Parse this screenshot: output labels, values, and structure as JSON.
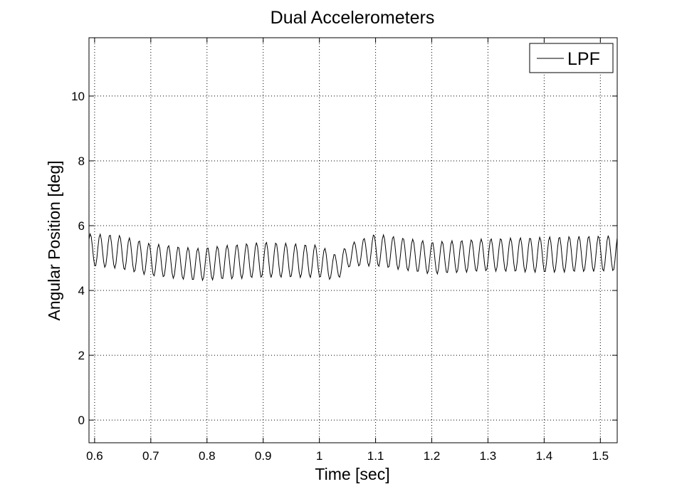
{
  "chart_data": {
    "type": "line",
    "title": "Dual Accelerometers",
    "xlabel": "Time [sec]",
    "ylabel": "Angular Position [deg]",
    "xlim": [
      0.59,
      1.53
    ],
    "ylim": [
      -0.7,
      11.8
    ],
    "xticks": [
      0.6,
      0.7,
      0.8,
      0.9,
      1.0,
      1.1,
      1.2,
      1.3,
      1.4,
      1.5
    ],
    "xtick_labels": [
      "0.6",
      "0.7",
      "0.8",
      "0.9",
      "1",
      "1.1",
      "1.2",
      "1.3",
      "1.4",
      "1.5"
    ],
    "yticks": [
      0,
      2,
      4,
      6,
      8,
      10
    ],
    "ytick_labels": [
      "0",
      "2",
      "4",
      "6",
      "8",
      "10"
    ],
    "grid": true,
    "legend_position": "top-right",
    "series": [
      {
        "name": "LPF",
        "color": "#000000",
        "signal": {
          "start": 0.59,
          "end": 1.53,
          "step": 0.002,
          "frequency_hz": 57.5,
          "segments": [
            {
              "t": 0.59,
              "mean": 5.25,
              "amplitude": 0.5
            },
            {
              "t": 0.64,
              "mean": 5.2,
              "amplitude": 0.52
            },
            {
              "t": 0.7,
              "mean": 4.95,
              "amplitude": 0.5
            },
            {
              "t": 0.78,
              "mean": 4.8,
              "amplitude": 0.5
            },
            {
              "t": 0.9,
              "mean": 4.95,
              "amplitude": 0.55
            },
            {
              "t": 1.0,
              "mean": 4.9,
              "amplitude": 0.5
            },
            {
              "t": 1.03,
              "mean": 4.7,
              "amplitude": 0.4
            },
            {
              "t": 1.055,
              "mean": 5.1,
              "amplitude": 0.35
            },
            {
              "t": 1.1,
              "mean": 5.25,
              "amplitude": 0.5
            },
            {
              "t": 1.2,
              "mean": 5.0,
              "amplitude": 0.5
            },
            {
              "t": 1.3,
              "mean": 5.1,
              "amplitude": 0.5
            },
            {
              "t": 1.4,
              "mean": 5.1,
              "amplitude": 0.55
            },
            {
              "t": 1.53,
              "mean": 5.15,
              "amplitude": 0.55
            }
          ]
        }
      }
    ]
  }
}
